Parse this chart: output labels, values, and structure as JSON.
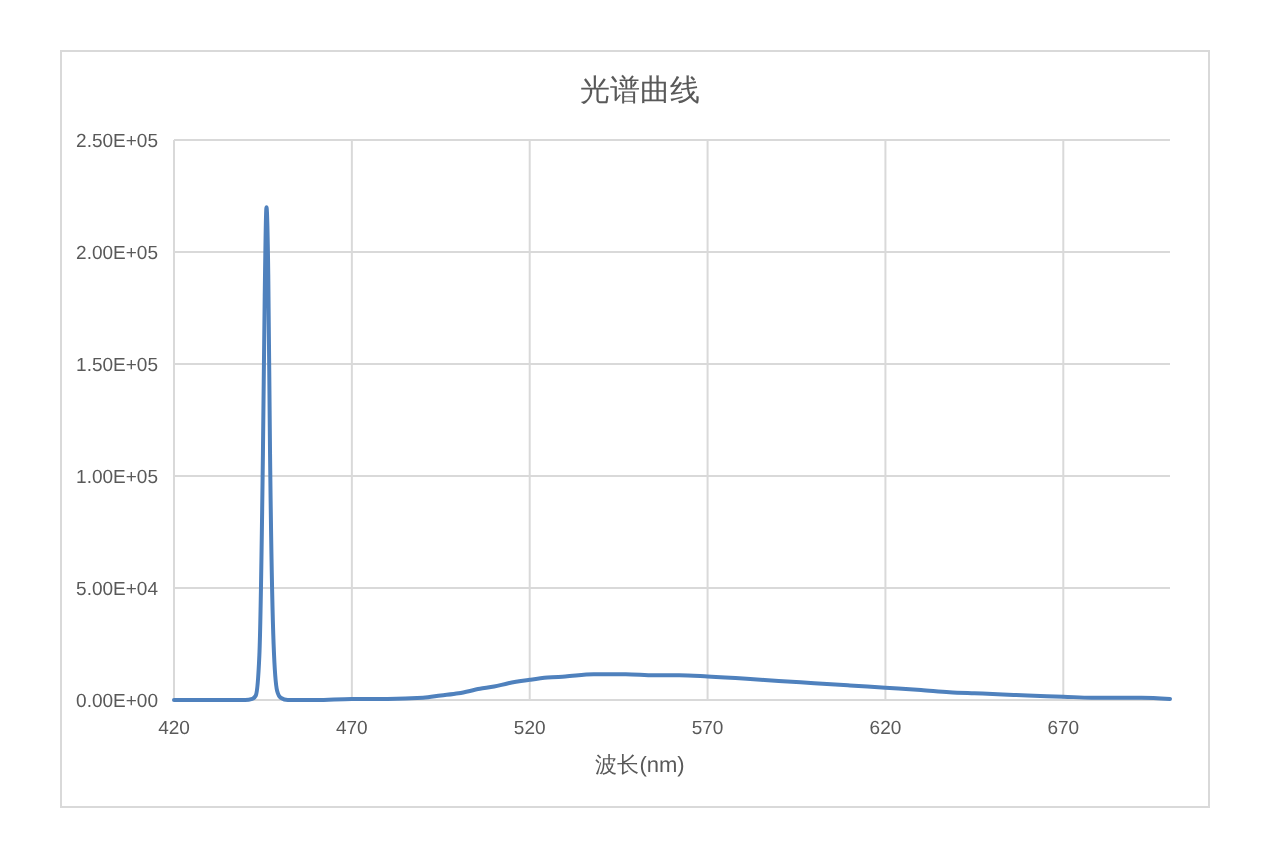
{
  "chart_data": {
    "type": "line",
    "title": "光谱曲线",
    "xlabel": "波长(nm)",
    "x": [
      420,
      425,
      430,
      435,
      440,
      442,
      443,
      444,
      445,
      445.5,
      446,
      446.5,
      447,
      448,
      449,
      450,
      452,
      455,
      460,
      470,
      480,
      490,
      495,
      500,
      506,
      510,
      514,
      520,
      525,
      530,
      538,
      547,
      555,
      562,
      570,
      581,
      590,
      600,
      610,
      620,
      630,
      638,
      645,
      653,
      660,
      670,
      678,
      685,
      692,
      700
    ],
    "series": [
      {
        "color": "#4f81bd",
        "values": [
          0,
          0,
          0,
          0,
          0,
          500,
          2000,
          20000,
          110000,
          180000,
          220000,
          190000,
          110000,
          25000,
          4000,
          1000,
          0,
          0,
          0,
          500,
          500,
          1000,
          2000,
          3000,
          5000,
          6000,
          7500,
          9000,
          10000,
          10500,
          11500,
          11500,
          11000,
          11000,
          10500,
          9500,
          8500,
          7500,
          6500,
          5500,
          4500,
          3500,
          3000,
          2500,
          2000,
          1500,
          1000,
          1000,
          1000,
          500
        ]
      }
    ],
    "xlim": [
      420,
      700
    ],
    "xticks": [
      420,
      470,
      520,
      570,
      620,
      670
    ],
    "ylim": [
      0,
      250000
    ],
    "yticks": [
      {
        "value": 0,
        "label": "0.00E+00"
      },
      {
        "value": 50000,
        "label": "5.00E+04"
      },
      {
        "value": 100000,
        "label": "1.00E+05"
      },
      {
        "value": 150000,
        "label": "1.50E+05"
      },
      {
        "value": 200000,
        "label": "2.00E+05"
      },
      {
        "value": 250000,
        "label": "2.50E+05"
      }
    ],
    "grid": true
  }
}
